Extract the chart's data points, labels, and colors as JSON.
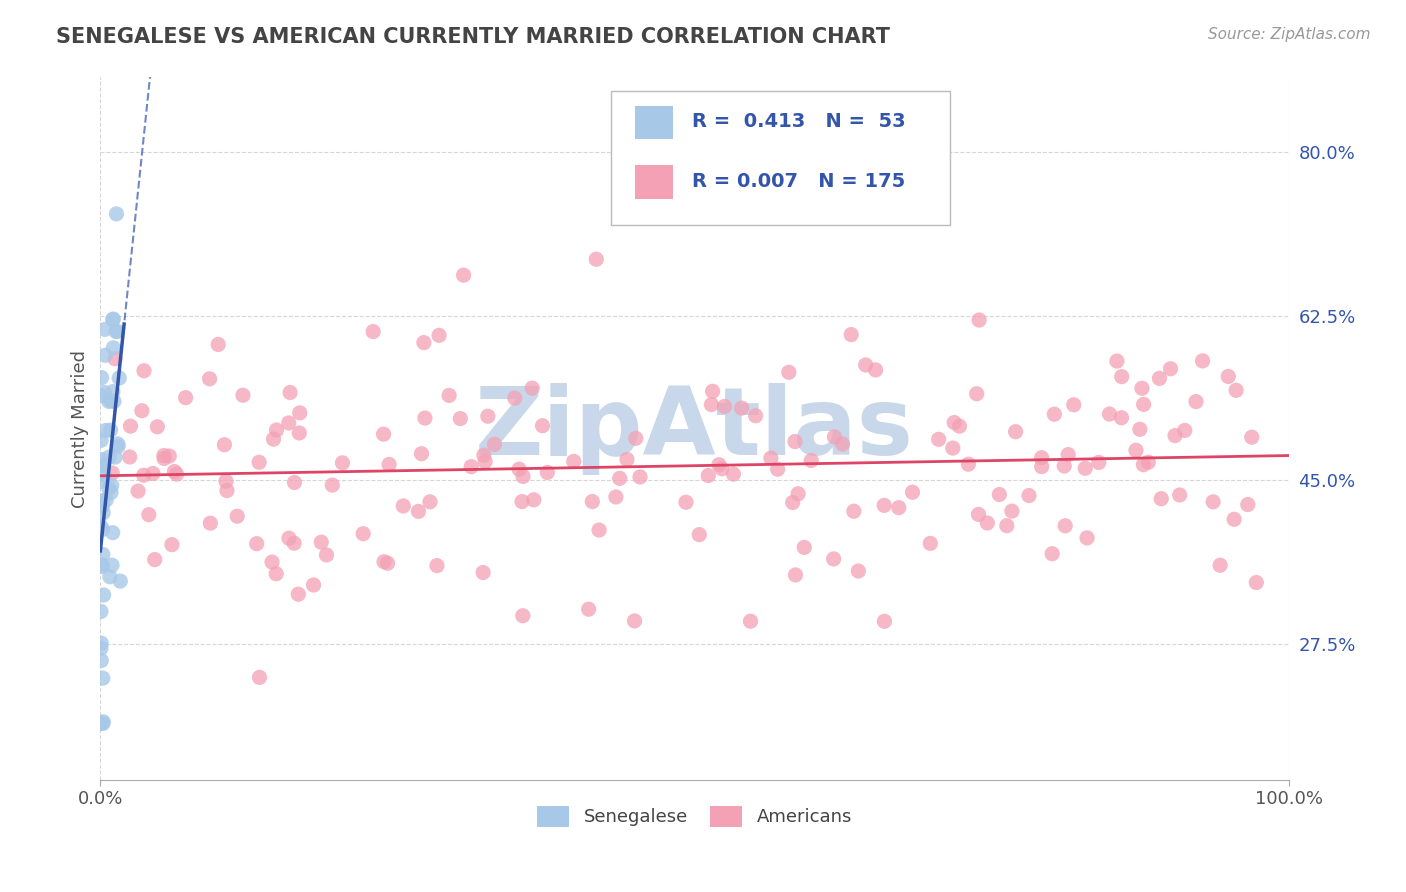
{
  "title": "SENEGALESE VS AMERICAN CURRENTLY MARRIED CORRELATION CHART",
  "source": "Source: ZipAtlas.com",
  "ylabel": "Currently Married",
  "yticks": [
    0.275,
    0.45,
    0.625,
    0.8
  ],
  "ytick_labels": [
    "27.5%",
    "45.0%",
    "62.5%",
    "80.0%"
  ],
  "xticks": [
    0.0,
    1.0
  ],
  "xtick_labels": [
    "0.0%",
    "100.0%"
  ],
  "xmin": 0.0,
  "xmax": 1.0,
  "ymin": 0.13,
  "ymax": 0.88,
  "legend_line1": "R =  0.413   N =  53",
  "legend_line2": "R = 0.007   N = 175",
  "color_senegalese": "#a8c8e8",
  "color_american": "#f4a0b5",
  "color_line_senegalese": "#3355aa",
  "color_line_american": "#dd4466",
  "color_title": "#444444",
  "color_source": "#999999",
  "color_legend_text_blue": "#3355aa",
  "color_legend_text_dark": "#222222",
  "background_color": "#ffffff",
  "grid_color": "#cccccc",
  "watermark_text": "ZipAtlas",
  "watermark_color": "#c8d8ea",
  "bottom_legend_labels": [
    "Senegalese",
    "Americans"
  ]
}
